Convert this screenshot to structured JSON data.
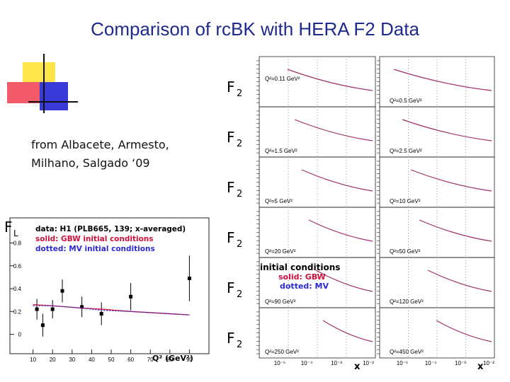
{
  "title": "Comparison of rcBK with HERA F2 Data",
  "citation": [
    "from Albacete, Armesto,",
    "Milhano, Salgado ‘09"
  ],
  "f2_panels": {
    "ylabel": "F",
    "ylabel_sub": "2",
    "q2_labels": [
      [
        "Q²=0.11 GeV²",
        "Q²=0.5 GeV²"
      ],
      [
        "Q²=1.5 GeV²",
        "Q²=2.5 GeV²"
      ],
      [
        "Q²=5 GeV²",
        "Q²=10 GeV²"
      ],
      [
        "Q²=20 GeV²",
        "Q²=50 GeV²"
      ],
      [
        "Q²=90 GeV²",
        "Q²=120 GeV²"
      ],
      [
        "Q²=250 GeV²",
        "Q²=450 GeV²"
      ]
    ],
    "legend": {
      "heading": "initial conditions",
      "solid": "solid: GBW",
      "dotted": "dotted: MV"
    },
    "xtick_labels": [
      [
        "10⁻⁵",
        "10⁻⁴",
        "10⁻³",
        "10⁻²"
      ],
      [
        "10⁻⁵",
        "10⁻⁴",
        "10⁻³",
        "10⁻²"
      ]
    ],
    "xlabel": "x"
  },
  "chart_data": {
    "type": "scatter",
    "ylabel": "F",
    "ylabel_sub": "L",
    "xlabel": "Q² (GeV²)",
    "xlim": [
      0,
      100
    ],
    "ylim": [
      -0.17,
      1.02
    ],
    "xticks": [
      10,
      20,
      30,
      40,
      50,
      60,
      70,
      80,
      90
    ],
    "yticks": [
      0,
      0.2,
      0.4,
      0.6,
      0.8
    ],
    "series": [
      {
        "name": "data: H1 (PLB665, 139; x-averaged)",
        "color": "#000000",
        "x": [
          12,
          15,
          20,
          25,
          35,
          45,
          60,
          90
        ],
        "values": [
          0.22,
          0.08,
          0.22,
          0.38,
          0.24,
          0.18,
          0.33,
          0.49
        ],
        "errors": [
          0.09,
          0.1,
          0.08,
          0.1,
          0.09,
          0.1,
          0.12,
          0.2
        ]
      },
      {
        "name": "solid: GBW initial conditions",
        "color": "#d0103a",
        "x": [
          10,
          20,
          35,
          45,
          60,
          90
        ],
        "values": [
          0.26,
          0.25,
          0.23,
          0.22,
          0.2,
          0.17
        ]
      },
      {
        "name": "dotted: MV initial conditions",
        "color": "#2a2ad0",
        "x": [
          10,
          20,
          35,
          45,
          60,
          90
        ],
        "values": [
          0.25,
          0.25,
          0.23,
          0.21,
          0.2,
          0.17
        ]
      }
    ]
  }
}
